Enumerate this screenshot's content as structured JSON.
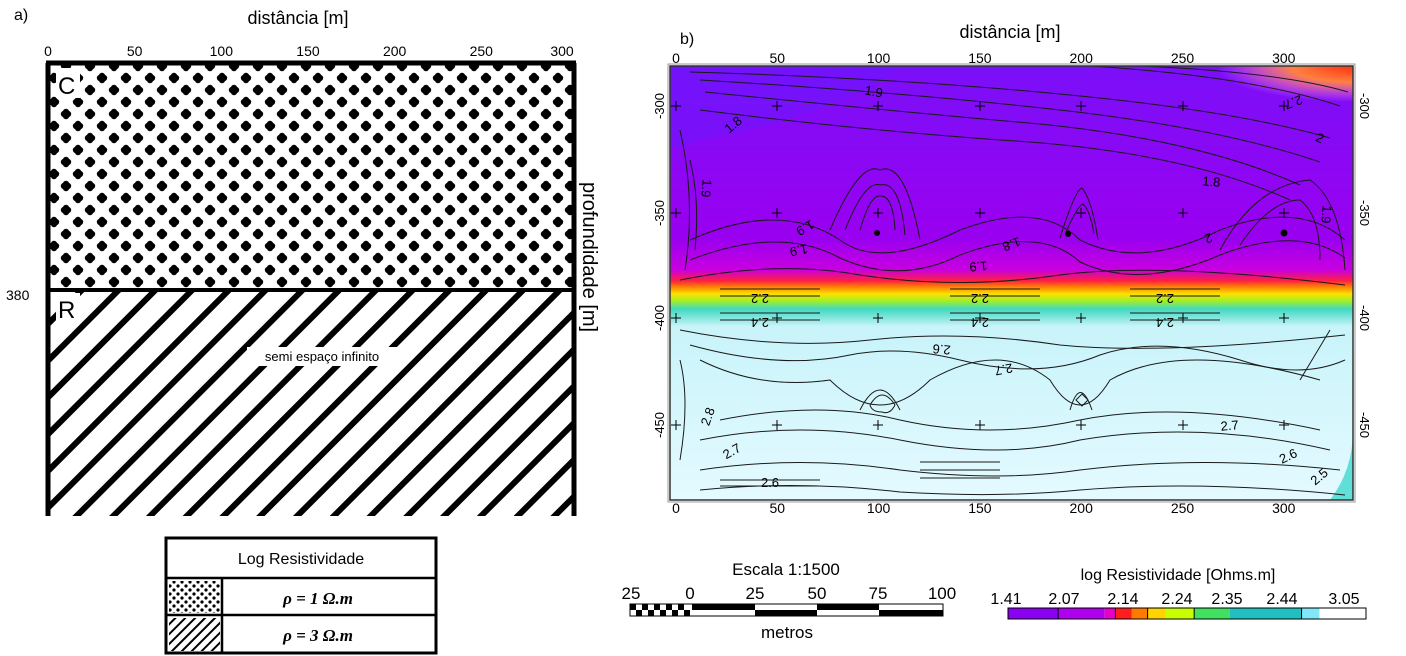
{
  "panel_a": {
    "label": "a)",
    "x_title": "distância [m]",
    "x_ticks": [
      "0",
      "50",
      "100",
      "150",
      "200",
      "250",
      "300"
    ],
    "y_title": "profundidade [m]",
    "depth_label": "380",
    "layer_top_label": "C",
    "layer_bottom_label": "R",
    "halfspace_label": "semi espaço infinito"
  },
  "legend_a": {
    "title": "Log Resistividade",
    "rows": [
      {
        "pattern": "dots",
        "text": "ρ = 1 Ω.m"
      },
      {
        "pattern": "hatch",
        "text": "ρ = 3 Ω.m"
      }
    ]
  },
  "panel_b": {
    "label": "b)",
    "x_title": "distância [m]",
    "x_ticks_top": [
      "0",
      "50",
      "100",
      "150",
      "200",
      "250",
      "300"
    ],
    "x_ticks_bottom": [
      "0",
      "50",
      "100",
      "150",
      "200",
      "250",
      "300"
    ],
    "y_ticks_left": [
      "-300",
      "-350",
      "-400",
      "-450"
    ],
    "y_ticks_right": [
      "-300",
      "-350",
      "-400",
      "-450"
    ],
    "contour_labels": [
      "1.9",
      "1.8",
      "2.7",
      "2",
      "1.9",
      "1.8",
      "1.9",
      "1.9",
      "1.8",
      "1.9",
      "2",
      "1.9",
      "2.2",
      "2.4",
      "2.2",
      "2.4",
      "2.2",
      "2.4",
      "2.6",
      "2.7",
      "2.8",
      "2.7",
      "2.7",
      "2.6",
      "2.6",
      "2.5"
    ]
  },
  "scale_bar": {
    "title": "Escala 1:1500",
    "ticks": [
      "25",
      "0",
      "25",
      "50",
      "75",
      "100"
    ],
    "unit": "metros"
  },
  "colorbar": {
    "title": "log Resistividade [Ohms.m]",
    "ticks": [
      "1.41",
      "2.07",
      "2.14",
      "2.24",
      "2.35",
      "2.44",
      "3.05"
    ],
    "colors": [
      "#8a00f0",
      "#b000f0",
      "#e600c8",
      "#ff1e1e",
      "#ff7a00",
      "#ffd400",
      "#c8ff00",
      "#40e060",
      "#20c0c0",
      "#80e8f8",
      "#ffffff"
    ]
  }
}
